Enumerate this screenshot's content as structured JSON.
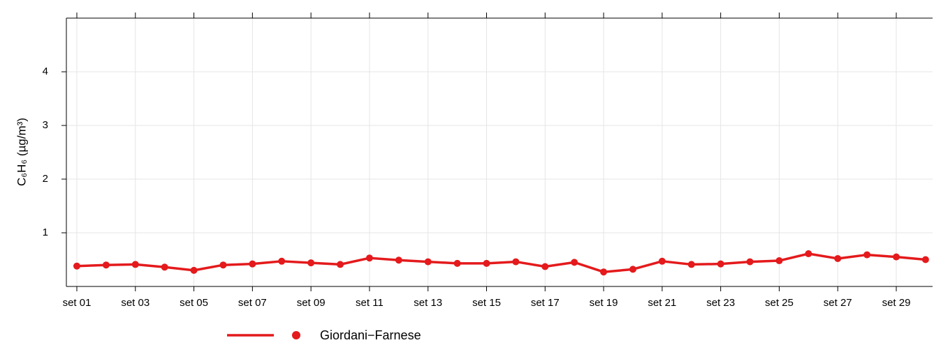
{
  "chart_data": {
    "type": "line",
    "y_label": "C₆H₆ (µg/m³)",
    "categories": [
      "set 01",
      null,
      "set 03",
      null,
      "set 05",
      null,
      "set 07",
      null,
      "set 09",
      null,
      "set 11",
      null,
      "set 13",
      null,
      "set 15",
      null,
      "set 17",
      null,
      "set 19",
      null,
      "set 21",
      null,
      "set 23",
      null,
      "set 25",
      null,
      "set 27",
      null,
      "set 29",
      null
    ],
    "series": [
      {
        "name": "Giordani−Farnese",
        "color": "#e41a1c",
        "values": [
          0.38,
          0.4,
          0.41,
          0.36,
          0.3,
          0.4,
          0.42,
          0.47,
          0.44,
          0.41,
          0.53,
          0.49,
          0.46,
          0.43,
          0.43,
          0.46,
          0.37,
          0.45,
          0.27,
          0.32,
          0.47,
          0.41,
          0.42,
          0.46,
          0.48,
          0.61,
          0.52,
          0.59,
          0.55,
          0.5
        ]
      }
    ],
    "ylim": [
      0,
      5
    ],
    "yticks": [
      1,
      2,
      3,
      4
    ],
    "grid": true
  }
}
